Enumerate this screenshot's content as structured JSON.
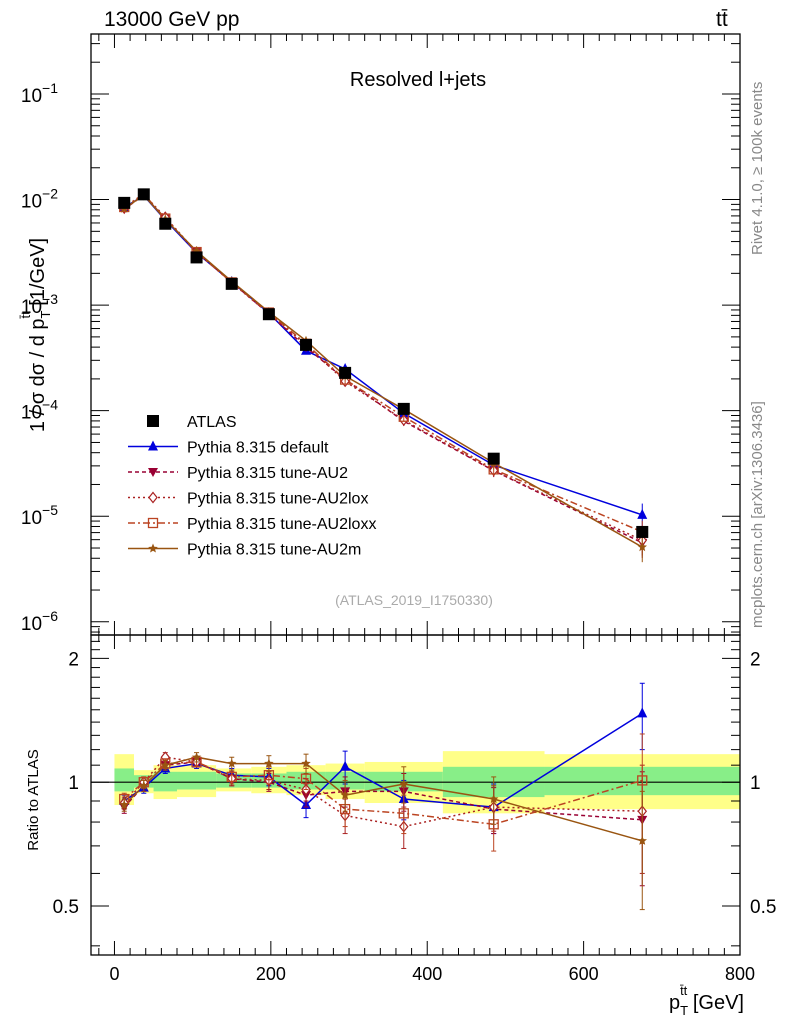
{
  "header": {
    "energy_label": "13000 GeV pp",
    "process_label": "tt̄"
  },
  "side_labels": {
    "rivet": "Rivet 4.1.0, ≥ 100k events",
    "mcplots": "mcplots.cern.ch [arXiv:1306.3436]"
  },
  "chart_data": {
    "type": "line",
    "title": "Resolved l+jets",
    "analysis_id": "(ATLAS_2019_I1750330)",
    "x_axis": {
      "label_main": "p",
      "label_sup": "t̄t",
      "label_sub": "T",
      "label_unit": " [GeV]",
      "range": [
        -30,
        800
      ],
      "ticks": [
        0,
        200,
        400,
        600,
        800
      ]
    },
    "main_panel": {
      "y_scale": "log",
      "y_label_text": "1 / σ dσ / d p",
      "y_label_sup": "t̄t",
      "y_label_sub": "T",
      "y_label_unit": " [1/GeV]",
      "y_range": [
        7.5e-07,
        0.37
      ],
      "ticks": [
        {
          "value": 1e-06,
          "mant": "10",
          "exp": "−6"
        },
        {
          "value": 1e-05,
          "mant": "10",
          "exp": "−5"
        },
        {
          "value": 0.0001,
          "mant": "10",
          "exp": "−4"
        },
        {
          "value": 0.001,
          "mant": "10",
          "exp": "−3"
        },
        {
          "value": 0.01,
          "mant": "10",
          "exp": "−2"
        },
        {
          "value": 0.1,
          "mant": "10",
          "exp": "−1"
        }
      ]
    },
    "ratio_panel": {
      "y_label": "Ratio to ATLAS",
      "y_range": [
        0.38,
        2.28
      ],
      "tick_labels": [
        {
          "value": 0.5,
          "label": "0.5"
        },
        {
          "value": 1,
          "label": "1"
        },
        {
          "value": 2,
          "label": "2"
        }
      ],
      "bins": [
        {
          "lo": 0,
          "hi": 25,
          "yellow": [
            0.88,
            1.17
          ],
          "green": [
            0.95,
            1.08
          ]
        },
        {
          "lo": 25,
          "hi": 50,
          "yellow": [
            0.94,
            1.07
          ],
          "green": [
            0.97,
            1.04
          ]
        },
        {
          "lo": 50,
          "hi": 80,
          "yellow": [
            0.91,
            1.1
          ],
          "green": [
            0.95,
            1.06
          ]
        },
        {
          "lo": 80,
          "hi": 130,
          "yellow": [
            0.92,
            1.1
          ],
          "green": [
            0.96,
            1.06
          ]
        },
        {
          "lo": 130,
          "hi": 175,
          "yellow": [
            0.95,
            1.08
          ],
          "green": [
            0.97,
            1.05
          ]
        },
        {
          "lo": 175,
          "hi": 220,
          "yellow": [
            0.94,
            1.09
          ],
          "green": [
            0.97,
            1.05
          ]
        },
        {
          "lo": 220,
          "hi": 270,
          "yellow": [
            0.93,
            1.1
          ],
          "green": [
            0.96,
            1.06
          ]
        },
        {
          "lo": 270,
          "hi": 320,
          "yellow": [
            0.91,
            1.11
          ],
          "green": [
            0.96,
            1.06
          ]
        },
        {
          "lo": 320,
          "hi": 420,
          "yellow": [
            0.89,
            1.12
          ],
          "green": [
            0.95,
            1.06
          ]
        },
        {
          "lo": 420,
          "hi": 550,
          "yellow": [
            0.84,
            1.19
          ],
          "green": [
            0.92,
            1.09
          ]
        },
        {
          "lo": 550,
          "hi": 800,
          "yellow": [
            0.86,
            1.17
          ],
          "green": [
            0.93,
            1.09
          ]
        }
      ]
    },
    "x_points": [
      12.5,
      37.5,
      65,
      105,
      150,
      197.5,
      245,
      295,
      370,
      485,
      675
    ],
    "data": {
      "name": "ATLAS",
      "values": [
        0.0093,
        0.0112,
        0.0059,
        0.00283,
        0.00159,
        0.00082,
        0.00042,
        0.000228,
        0.000104,
        3.51e-05,
        7.1e-06
      ]
    },
    "series": [
      {
        "name": "Pythia 8.315 default",
        "color": "#0000dd",
        "marker": "triangle-up",
        "dash": "",
        "values": [
          0.0084,
          0.0109,
          0.0064,
          0.00313,
          0.00166,
          0.00084,
          0.00037,
          0.000248,
          9.45e-05,
          3.05e-05,
          1.03e-05
        ],
        "ratio": [
          0.9,
          0.97,
          1.08,
          1.11,
          1.04,
          1.03,
          0.88,
          1.09,
          0.91,
          0.87,
          1.47
        ],
        "ratio_err": [
          0.03,
          0.03,
          0.03,
          0.03,
          0.04,
          0.05,
          0.06,
          0.1,
          0.1,
          0.12,
          0.27
        ]
      },
      {
        "name": "Pythia 8.315 tune-AU2",
        "color": "#990033",
        "marker": "triangle-down",
        "dash": "4,3",
        "values": [
          0.0081,
          0.011,
          0.0066,
          0.00318,
          0.00165,
          0.00083,
          0.0004,
          0.000198,
          7.95e-05,
          2.7e-05,
          5.6e-06
        ],
        "ratio": [
          0.87,
          0.98,
          1.1,
          1.12,
          1.02,
          1.0,
          0.93,
          0.95,
          0.95,
          0.86,
          0.81
        ],
        "ratio_err": [
          0.03,
          0.03,
          0.03,
          0.03,
          0.04,
          0.05,
          0.06,
          0.08,
          0.1,
          0.11,
          0.25
        ]
      },
      {
        "name": "Pythia 8.315 tune-AU2lox",
        "color": "#aa2222",
        "marker": "diamond-open",
        "dash": "2,3",
        "values": [
          0.0083,
          0.0112,
          0.0068,
          0.00318,
          0.00163,
          0.00083,
          0.00042,
          0.00019,
          8.15e-05,
          2.72e-05,
          5.9e-06
        ],
        "ratio": [
          0.89,
          1.0,
          1.15,
          1.12,
          1.02,
          1.01,
          0.96,
          0.83,
          0.78,
          0.87,
          0.85
        ],
        "ratio_err": [
          0.03,
          0.03,
          0.03,
          0.03,
          0.04,
          0.05,
          0.06,
          0.08,
          0.09,
          0.11,
          0.25
        ]
      },
      {
        "name": "Pythia 8.315 tune-AU2loxx",
        "color": "#bb4422",
        "marker": "square-open",
        "dash": "7,3,2,3",
        "values": [
          0.0085,
          0.0113,
          0.0066,
          0.00318,
          0.00164,
          0.00085,
          0.00043,
          0.000197,
          8.76e-05,
          2.78e-05,
          7.1e-06
        ],
        "ratio": [
          0.91,
          1.0,
          1.11,
          1.12,
          1.03,
          1.04,
          1.02,
          0.86,
          0.84,
          0.79,
          1.01
        ],
        "ratio_err": [
          0.03,
          0.03,
          0.03,
          0.03,
          0.04,
          0.05,
          0.06,
          0.08,
          0.09,
          0.11,
          0.3
        ]
      },
      {
        "name": "Pythia 8.315 tune-AU2m",
        "color": "#995511",
        "marker": "star",
        "dash": "",
        "values": [
          0.0082,
          0.011,
          0.0065,
          0.00325,
          0.00168,
          0.00086,
          0.00046,
          0.000213,
          0.000103,
          3.2e-05,
          5.1e-06
        ],
        "ratio": [
          0.88,
          0.98,
          1.1,
          1.15,
          1.11,
          1.11,
          1.11,
          0.93,
          0.99,
          0.91,
          0.72
        ],
        "ratio_err": [
          0.03,
          0.03,
          0.03,
          0.03,
          0.04,
          0.05,
          0.06,
          0.08,
          0.1,
          0.12,
          0.23
        ]
      }
    ],
    "error_bars_main": [
      0.04,
      0.04,
      0.04,
      0.04,
      0.05,
      0.06,
      0.07,
      0.09,
      0.1,
      0.13,
      0.28
    ]
  }
}
